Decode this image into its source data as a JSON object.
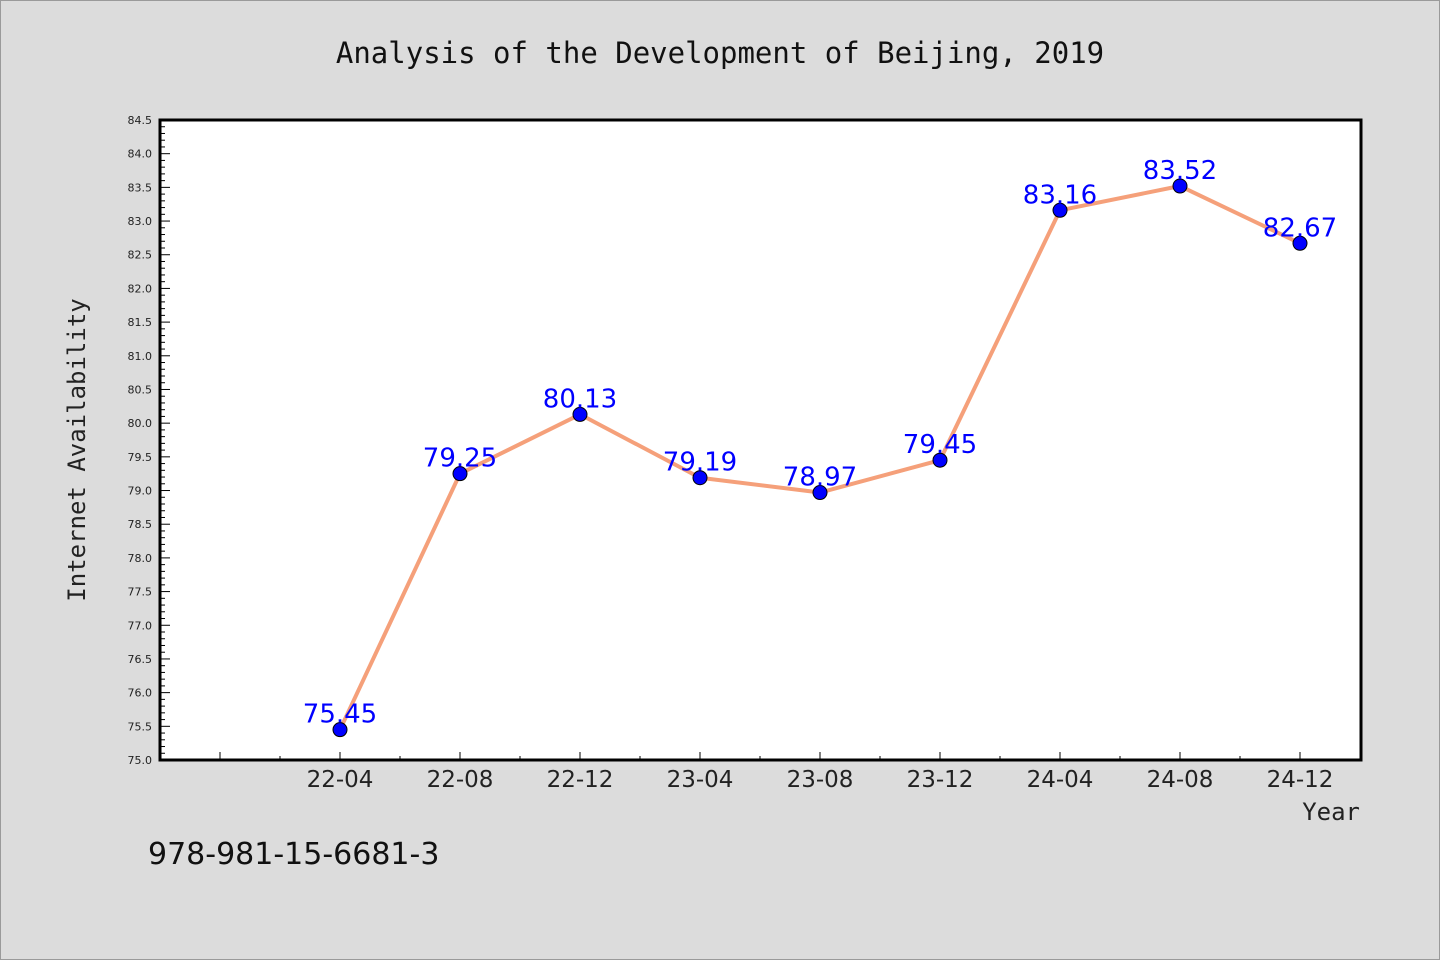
{
  "chart_data": {
    "type": "line",
    "title": "Analysis of the Development of Beijing, 2019",
    "xlabel": "Year",
    "ylabel": "Internet Availability",
    "categories": [
      "22-04",
      "22-08",
      "22-12",
      "23-04",
      "23-08",
      "23-12",
      "24-04",
      "24-08",
      "24-12"
    ],
    "series": [
      {
        "values": [
          75.45,
          79.25,
          80.13,
          79.19,
          78.97,
          79.45,
          83.16,
          83.52,
          82.67
        ],
        "line_color": "#f5a07a",
        "marker_color": "#0000ff"
      }
    ],
    "data_labels": [
      "75.45",
      "79.25",
      "80.13",
      "79.19",
      "78.97",
      "79.45",
      "83.16",
      "83.52",
      "82.67"
    ],
    "ylim": [
      75.0,
      84.5
    ],
    "ytick_labels": [
      "75.0",
      "75.5",
      "76.0",
      "76.5",
      "77.0",
      "77.5",
      "78.0",
      "78.5",
      "79.0",
      "79.5",
      "80.0",
      "80.5",
      "81.0",
      "81.5",
      "82.0",
      "82.5",
      "83.0",
      "83.5",
      "84.0",
      "84.5"
    ],
    "grid": false,
    "legend": "none"
  },
  "footnote": "978-981-15-6681-3"
}
